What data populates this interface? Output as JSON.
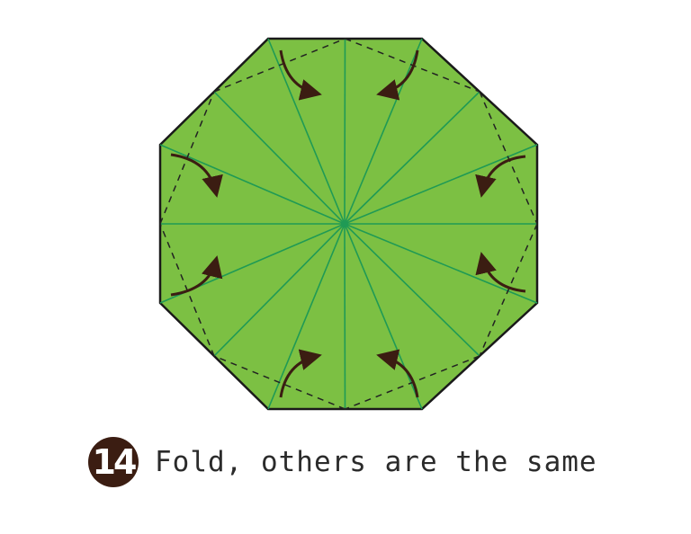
{
  "step": {
    "number": "14",
    "instruction": "Fold, others are the same"
  },
  "colors": {
    "paper": "#7cc043",
    "outline": "#1a1a1a",
    "crease": "#1f9a55",
    "center_dot": "#1f9a55",
    "fold_line": "#222222",
    "arrow": "#3b1d12",
    "badge": "#3b1d12"
  },
  "icons": [
    "curved-fold-arrow-icon",
    "step-number-badge"
  ]
}
